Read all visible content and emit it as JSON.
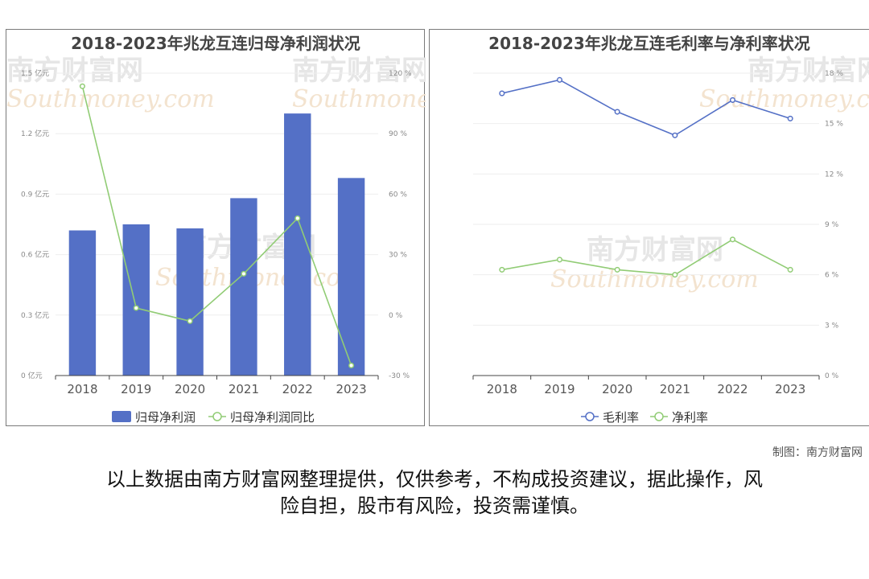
{
  "chart_data": [
    {
      "type": "bar",
      "title": "2018-2023年兆龙互连归母净利润状况",
      "categories": [
        "2018",
        "2019",
        "2020",
        "2021",
        "2022",
        "2023"
      ],
      "y_left_ticks": [
        "0 亿元",
        "0.3 亿元",
        "0.6 亿元",
        "0.9 亿元",
        "1.2 亿元",
        "1.5 亿元"
      ],
      "y_right_ticks": [
        "-30 %",
        "0 %",
        "30 %",
        "60 %",
        "90 %",
        "120 %"
      ],
      "ylim_left": [
        0,
        1.5
      ],
      "ylim_right": [
        -30,
        120
      ],
      "series": [
        {
          "name": "归母净利润",
          "type": "bar",
          "axis": "left",
          "color": "#5470c6",
          "values": [
            0.72,
            0.75,
            0.73,
            0.88,
            1.3,
            0.98
          ]
        },
        {
          "name": "归母净利润同比",
          "type": "line",
          "axis": "right",
          "color": "#91cc75",
          "values": [
            113.5,
            3.5,
            -3.0,
            20.5,
            48.0,
            -25.0
          ]
        }
      ],
      "legend_position": "bottom-center",
      "grid": true
    },
    {
      "type": "line",
      "title": "2018-2023年兆龙互连毛利率与净利率状况",
      "categories": [
        "2018",
        "2019",
        "2020",
        "2021",
        "2022",
        "2023"
      ],
      "y_right_ticks": [
        "0 %",
        "3 %",
        "6 %",
        "9 %",
        "12 %",
        "15 %",
        "18 %"
      ],
      "ylim": [
        0,
        18
      ],
      "series": [
        {
          "name": "毛利率",
          "type": "line",
          "color": "#5470c6",
          "values": [
            16.8,
            17.6,
            15.7,
            14.3,
            16.4,
            15.3
          ]
        },
        {
          "name": "净利率",
          "type": "line",
          "color": "#91cc75",
          "values": [
            6.3,
            6.9,
            6.3,
            6.0,
            8.1,
            6.3
          ]
        }
      ],
      "legend_position": "bottom-center",
      "grid": true
    }
  ],
  "watermark": {
    "cn": "南方财富网",
    "en": "Southmoney.com"
  },
  "footer": {
    "credit": "制图：南方财富网",
    "disclaimer_line1": "以上数据由南方财富网整理提供，仅供参考，不构成投资建议，据此操作，风",
    "disclaimer_line2": "险自担，股市有风险，投资需谨慎。"
  }
}
